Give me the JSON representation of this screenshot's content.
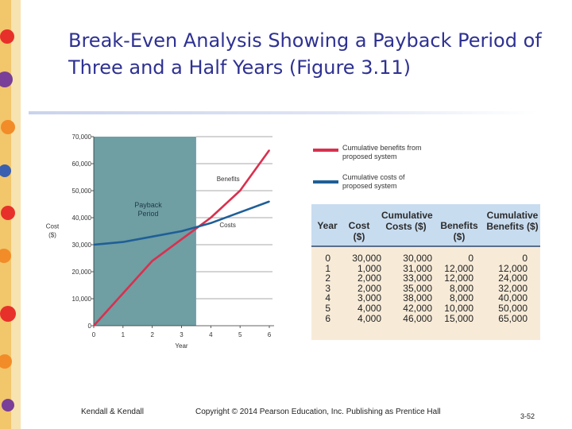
{
  "slide": {
    "title": "Break-Even Analysis Showing a Payback Period of Three and a Half Years (Figure 3.11)",
    "footer_left": "Kendall & Kendall",
    "footer_center": "Copyright © 2014 Pearson Education, Inc. Publishing as Prentice Hall",
    "page_number": "3-52",
    "colors": {
      "title": "#2e3192",
      "benefits_line": "#d9304e",
      "costs_line": "#1f5f97",
      "payback_fill": "#6f9ea3"
    }
  },
  "chart_data": {
    "type": "line",
    "xlabel": "Year",
    "ylabel": "Cost ($)",
    "x": [
      0,
      1,
      2,
      3,
      4,
      5,
      6
    ],
    "xlim": [
      0,
      6
    ],
    "ylim": [
      0,
      70000
    ],
    "yticks": [
      "0",
      "10,000",
      "20,000",
      "30,000",
      "40,000",
      "50,000",
      "60,000",
      "70,000"
    ],
    "series": [
      {
        "name": "Cumulative benefits from proposed system",
        "label": "Benefits",
        "color": "#d9304e",
        "x": [
          0,
          1,
          2,
          3,
          4,
          5,
          6
        ],
        "values": [
          0,
          12000,
          24000,
          32000,
          40000,
          50000,
          65000
        ]
      },
      {
        "name": "Cumulative costs of proposed system",
        "label": "Costs",
        "color": "#1f5f97",
        "x": [
          0,
          1,
          2,
          3,
          4,
          5,
          6
        ],
        "values": [
          30000,
          31000,
          33000,
          35000,
          38000,
          42000,
          46000
        ]
      }
    ],
    "payback_region": {
      "label": "Payback Period",
      "x": [
        0,
        3.5
      ]
    },
    "legend_placement": "top-right",
    "grid": false
  },
  "table": {
    "headers": [
      "Year",
      "Cost ($)",
      "Cumulative Costs ($)",
      "Benefits ($)",
      "Cumulative Benefits ($)"
    ],
    "columns": [
      [
        "0",
        "1",
        "2",
        "3",
        "4",
        "5",
        "6"
      ],
      [
        "30,000",
        "1,000",
        "2,000",
        "2,000",
        "3,000",
        "4,000",
        "4,000"
      ],
      [
        "30,000",
        "31,000",
        "33,000",
        "35,000",
        "38,000",
        "42,000",
        "46,000"
      ],
      [
        "0",
        "12,000",
        "12,000",
        "8,000",
        "8,000",
        "10,000",
        "15,000"
      ],
      [
        "0",
        "12,000",
        "24,000",
        "32,000",
        "40,000",
        "50,000",
        "65,000"
      ]
    ]
  }
}
